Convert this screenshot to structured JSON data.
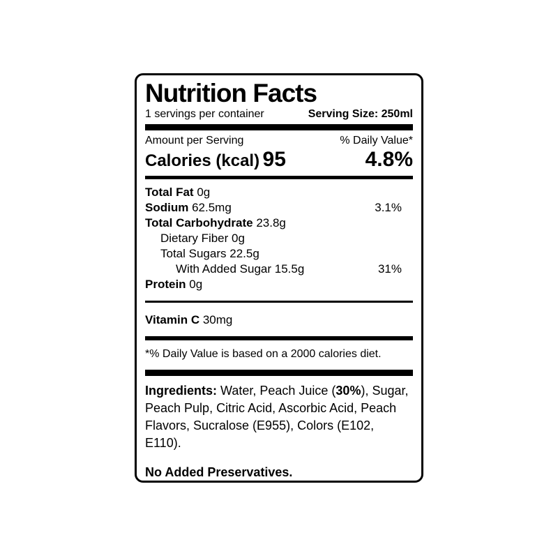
{
  "label": {
    "title": "Nutrition Facts",
    "serving_info": {
      "servings_per_container": "1 servings per container",
      "serving_size": "Serving Size: 250ml"
    },
    "header": {
      "amount_per_serving": "Amount per Serving",
      "daily_value": "% Daily Value*"
    },
    "calories": {
      "label": "Calories (kcal)",
      "value": "95",
      "daily_value": "4.8%"
    },
    "nutrients": [
      {
        "name": "Total Fat",
        "value": "0g",
        "dv": ""
      },
      {
        "name": "Sodium",
        "value": "62.5mg",
        "dv": "3.1%"
      },
      {
        "name": "Total Carbohydrate",
        "value": "23.8g",
        "dv": ""
      },
      {
        "name": "Dietary Fiber",
        "value": "0g",
        "dv": ""
      },
      {
        "name": "Total Sugars",
        "value": "22.5g",
        "dv": ""
      },
      {
        "name": "With Added Sugar",
        "value": "15.5g",
        "dv": "31%"
      },
      {
        "name": "Protein",
        "value": "0g",
        "dv": ""
      }
    ],
    "vitamin": {
      "name": "Vitamin C",
      "value": "30mg"
    },
    "footnote": "*% Daily Value is based on a 2000 calories diet.",
    "ingredients": {
      "label": "Ingredients:",
      "part1": " Water, Peach Juice (",
      "highlight": "30%",
      "part2": "), Sugar, Peach Pulp, Citric Acid, Ascorbic Acid, Peach Flavors, Sucralose (E955), Colors (E102, E110)."
    },
    "claim": "No Added Preservatives.",
    "colors": {
      "text": "#000000",
      "background": "#ffffff",
      "border": "#000000"
    }
  }
}
